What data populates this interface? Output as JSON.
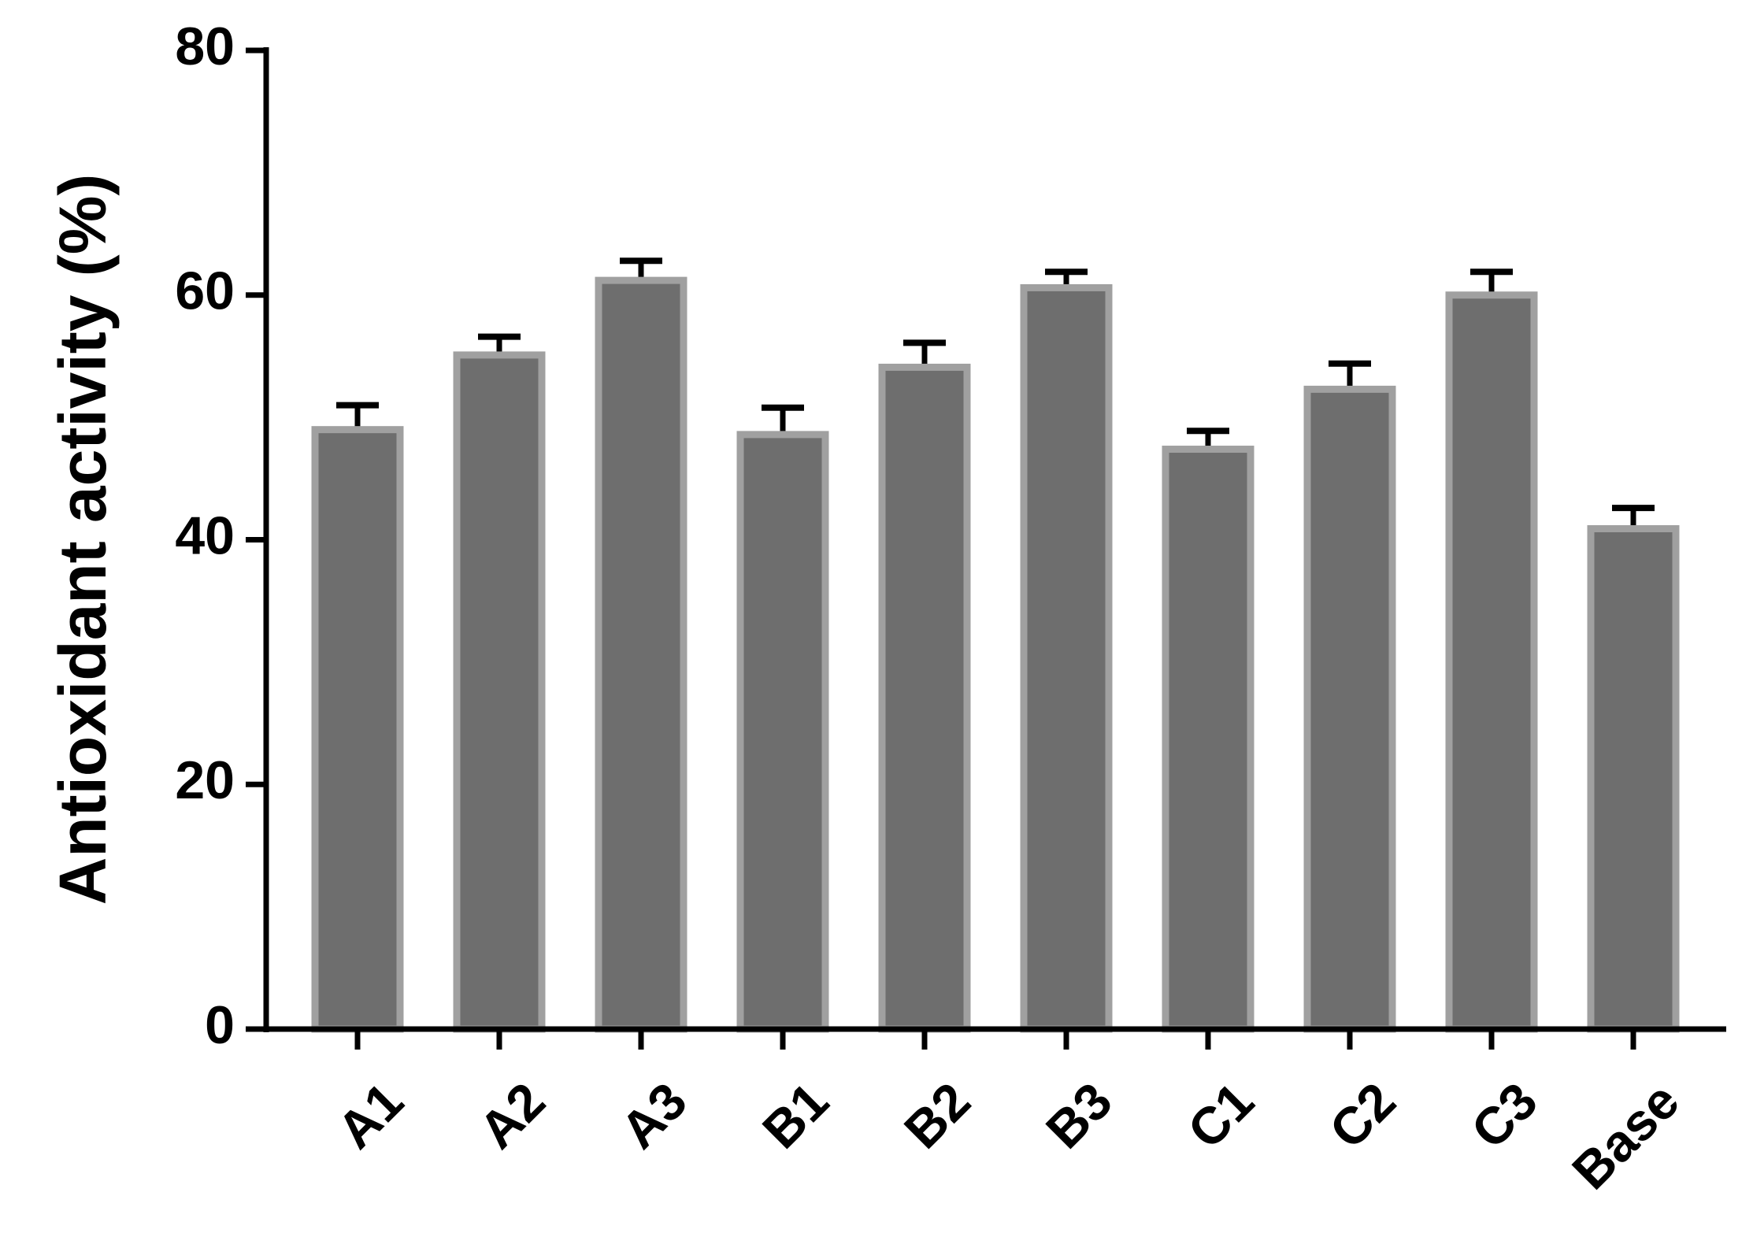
{
  "chart_data": {
    "type": "bar",
    "y_label": "Antioxidant activity (%)",
    "categories": [
      "A1",
      "A2",
      "A3",
      "B1",
      "B2",
      "B3",
      "C1",
      "C2",
      "C3",
      "Base"
    ],
    "values": [
      49.0,
      55.1,
      61.2,
      48.6,
      54.1,
      60.6,
      47.4,
      52.3,
      60.0,
      40.9
    ],
    "errors": [
      2.0,
      1.5,
      1.6,
      2.2,
      2.0,
      1.3,
      1.5,
      2.1,
      1.9,
      1.7
    ],
    "color": "#6e6e6e",
    "edge_color": "#a0a0a0",
    "ylim": [
      0,
      80
    ],
    "yticks": [
      0,
      20,
      40,
      60,
      80
    ],
    "grid": false
  }
}
